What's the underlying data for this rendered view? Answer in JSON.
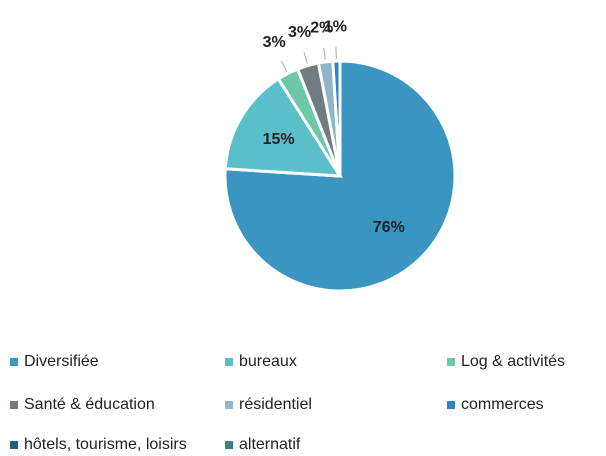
{
  "chart_data": {
    "type": "pie",
    "categories": [
      "Diversifiée",
      "bureaux",
      "Log & activités",
      "Santé &  éducation",
      "résidentiel",
      "commerces",
      "hôtels, tourisme, loisirs",
      "alternatif"
    ],
    "values": [
      76,
      15,
      3,
      3,
      2,
      1,
      0,
      0
    ],
    "value_labels": [
      "76%",
      "15%",
      "3%",
      "3%",
      "2%",
      "1%",
      null,
      null
    ],
    "colors": [
      "#3a96c0",
      "#5bbfca",
      "#6cc8a8",
      "#6f7d82",
      "#8fb6c8",
      "#2b86c0",
      "#1f5f7d",
      "#3a8080"
    ],
    "legend": "bottom"
  }
}
